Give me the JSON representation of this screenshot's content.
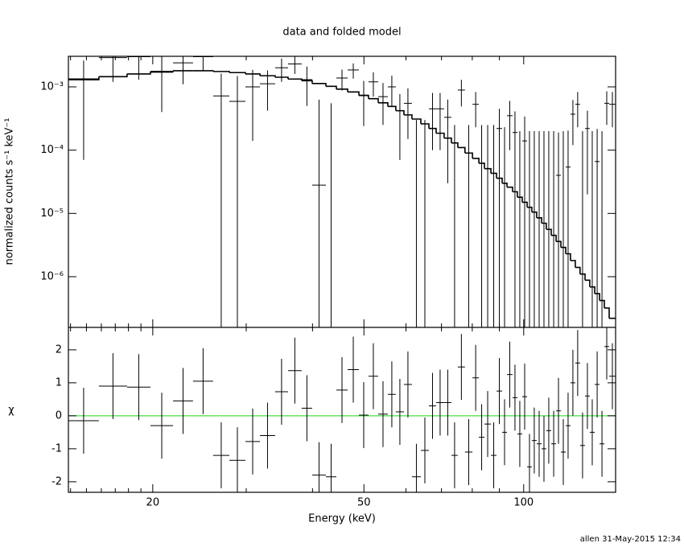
{
  "footer": "allen 31-May-2015 12:34",
  "chart_data": [
    {
      "type": "spectrum",
      "title": "data and folded model",
      "ylabel": "normalized counts s⁻¹ keV⁻¹",
      "xscale": "log",
      "yscale": "log",
      "xlim": [
        13.87,
        149.0
      ],
      "ylim": [
        1.58e-07,
        0.00304
      ],
      "yticks": [
        {
          "value": 0.001,
          "label": "10⁻³"
        },
        {
          "value": 0.0001,
          "label": "10⁻⁴"
        },
        {
          "value": 1e-05,
          "label": "10⁻⁵"
        },
        {
          "value": 1e-06,
          "label": "10⁻⁶"
        }
      ],
      "bins": [
        13.87,
        15.83,
        17.89,
        19.8,
        21.84,
        23.82,
        25.99,
        27.88,
        29.9,
        31.84,
        34.01,
        35.97,
        38.16,
        39.94,
        42.39,
        44.36,
        46.59,
        48.92,
        51.0,
        53.19,
        55.46,
        57.42,
        59.47,
        61.58,
        64.0,
        66.28,
        68.39,
        70.8,
        73.07,
        75.13,
        77.51,
        80.07,
        82.33,
        84.34,
        86.74,
        88.88,
        91.08,
        93.0,
        95.28,
        97.3,
        99.36,
        101.5,
        103.6,
        105.8,
        108.1,
        110.3,
        112.7,
        115.1,
        117.5,
        120.0,
        122.5,
        125.1,
        127.7,
        130.5,
        133.2,
        136.1,
        139.0,
        141.9,
        144.9,
        149.0
      ],
      "data": {
        "color": "#000000",
        "values": [
          0.00134,
          0.0029,
          0.003,
          0.0017,
          0.0024,
          0.003,
          0.00072,
          0.00059,
          0.001,
          0.00112,
          0.002,
          0.0023,
          0.0013,
          2.8e-05,
          1e-07,
          0.00138,
          0.00185,
          0.00074,
          0.0012,
          0.0007,
          0.001,
          0.00042,
          0.00055,
          1e-07,
          1e-07,
          0.00045,
          0.00045,
          0.00033,
          1e-07,
          0.00089,
          1e-07,
          0.00053,
          1e-07,
          1e-07,
          1e-07,
          0.00022,
          1e-07,
          0.00035,
          0.00019,
          1e-07,
          0.00014,
          1e-07,
          1e-07,
          1e-07,
          1e-07,
          1e-07,
          1e-07,
          4e-05,
          1e-07,
          5.4e-05,
          0.00037,
          0.00053,
          1e-07,
          0.00022,
          1e-07,
          6.6e-05,
          1e-07,
          0.00055,
          0.00053
        ],
        "errors": [
          0.00127,
          0.0017,
          0.0017,
          0.0013,
          0.0013,
          0.0012,
          0.0009,
          0.0009,
          0.00086,
          0.0007,
          0.0008,
          0.0007,
          0.0008,
          0.0006,
          0.00055,
          0.0005,
          0.0005,
          0.0005,
          0.0005,
          0.00045,
          0.0005,
          0.00035,
          0.0004,
          0.0003,
          0.0003,
          0.00035,
          0.00035,
          0.0003,
          0.00025,
          0.0004,
          0.00025,
          0.0003,
          0.00025,
          0.00025,
          0.00025,
          0.00023,
          0.00023,
          0.00025,
          0.00022,
          0.0002,
          0.0002,
          0.0002,
          0.0002,
          0.0002,
          0.0002,
          0.0002,
          0.0002,
          0.00015,
          0.0002,
          0.00015,
          0.00025,
          0.0003,
          0.0002,
          0.0002,
          0.0002,
          0.00015,
          0.0002,
          0.0003,
          0.0003
        ]
      },
      "model": {
        "color": "#000000",
        "values": [
          0.0013,
          0.00145,
          0.0016,
          0.00175,
          0.0018,
          0.0018,
          0.00175,
          0.00168,
          0.0016,
          0.0015,
          0.00142,
          0.00133,
          0.00125,
          0.00113,
          0.00102,
          0.00092,
          0.00083,
          0.00073,
          0.00065,
          0.00056,
          0.00049,
          0.00042,
          0.00036,
          0.00031,
          0.00026,
          0.00022,
          0.000185,
          0.000155,
          0.00013,
          0.00011,
          9e-05,
          7.4e-05,
          6.2e-05,
          5.1e-05,
          4.3e-05,
          3.6e-05,
          3e-05,
          2.6e-05,
          2.2e-05,
          1.8e-05,
          1.5e-05,
          1.25e-05,
          1.05e-05,
          8.5e-06,
          7e-06,
          5.6e-06,
          4.5e-06,
          3.6e-06,
          2.9e-06,
          2.3e-06,
          1.8e-06,
          1.4e-06,
          1.1e-06,
          8.8e-07,
          6.9e-07,
          5.4e-07,
          4.2e-07,
          3.2e-07,
          2.2e-07
        ]
      }
    },
    {
      "type": "residual",
      "ylabel": "χ",
      "xlabel": "Energy (keV)",
      "xscale": "log",
      "xlim": [
        13.87,
        149.0
      ],
      "xticks": [
        20,
        50,
        100
      ],
      "xminorticks": [
        14,
        15,
        16,
        17,
        18,
        19,
        30,
        40,
        60,
        70,
        80,
        90
      ],
      "ylim": [
        -2.32,
        2.68
      ],
      "yticks": [
        -2,
        -1,
        0,
        1,
        2
      ],
      "color": "#000000",
      "error": 1,
      "reference_line": {
        "value": 0,
        "color": "#44dd44"
      },
      "values": [
        -0.15,
        0.9,
        0.87,
        -0.3,
        0.45,
        1.05,
        -1.2,
        -1.35,
        -0.78,
        -0.6,
        0.73,
        1.37,
        0.23,
        -1.8,
        -1.85,
        0.78,
        1.4,
        0.02,
        1.2,
        0.05,
        0.65,
        0.12,
        0.95,
        -1.85,
        -1.05,
        0.3,
        0.4,
        0.4,
        -1.2,
        1.48,
        -1.1,
        1.15,
        -0.65,
        -0.25,
        -1.2,
        0.75,
        -0.5,
        1.25,
        0.55,
        -0.55,
        0.58,
        -1.55,
        -0.75,
        -0.85,
        -1.0,
        -0.45,
        -0.85,
        0.15,
        -1.1,
        -0.3,
        1.0,
        1.6,
        -0.9,
        0.6,
        -0.5,
        0.95,
        -0.85,
        2.1,
        1.2
      ]
    }
  ]
}
